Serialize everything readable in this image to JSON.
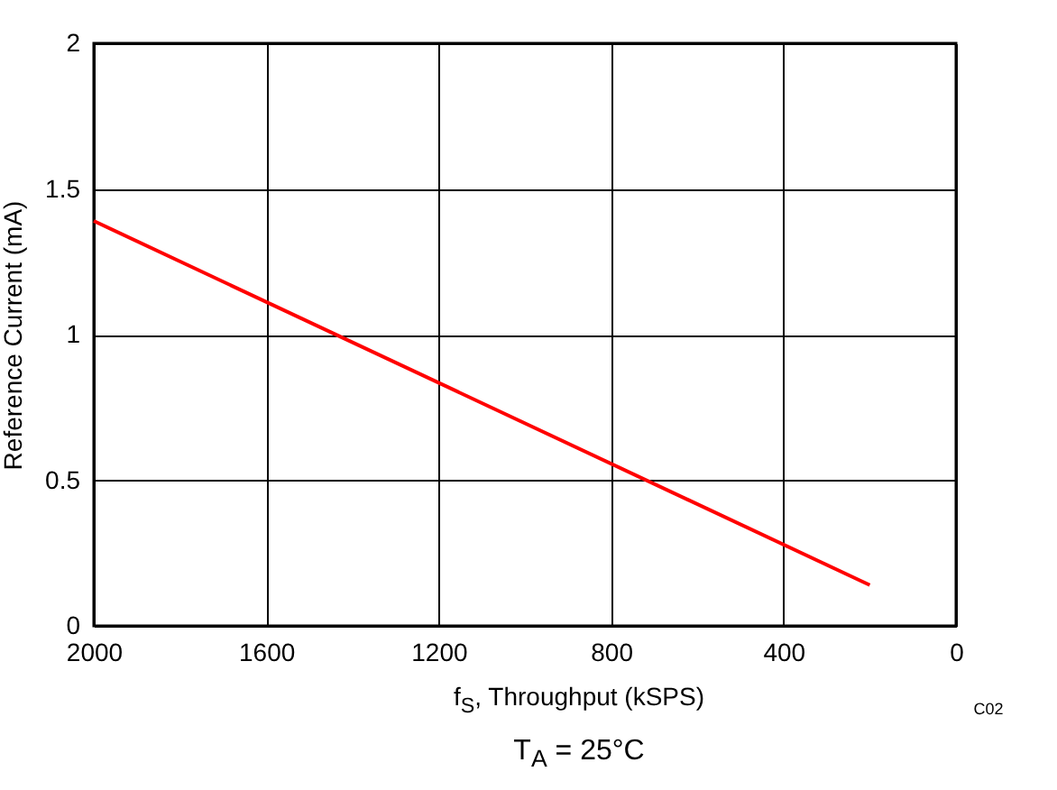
{
  "chart_data": {
    "type": "line",
    "xlabel": "f$_{S}$, Throughput (kSPS)",
    "ylabel": "Reference Current (mA)",
    "x": [
      2000,
      200
    ],
    "series": [
      {
        "color": "#ff0000",
        "values": [
          1.39,
          0.14
        ]
      }
    ],
    "xlim": [
      2000,
      0
    ],
    "xticks": [
      2000,
      1600,
      1200,
      800,
      400,
      0
    ],
    "ylim": [
      0,
      2
    ],
    "yticks": [
      0,
      0.5,
      1,
      1.5,
      2
    ],
    "grid": true,
    "legend": false,
    "annotations": [
      "C02",
      "T$_{A}$ = 25°C"
    ]
  }
}
